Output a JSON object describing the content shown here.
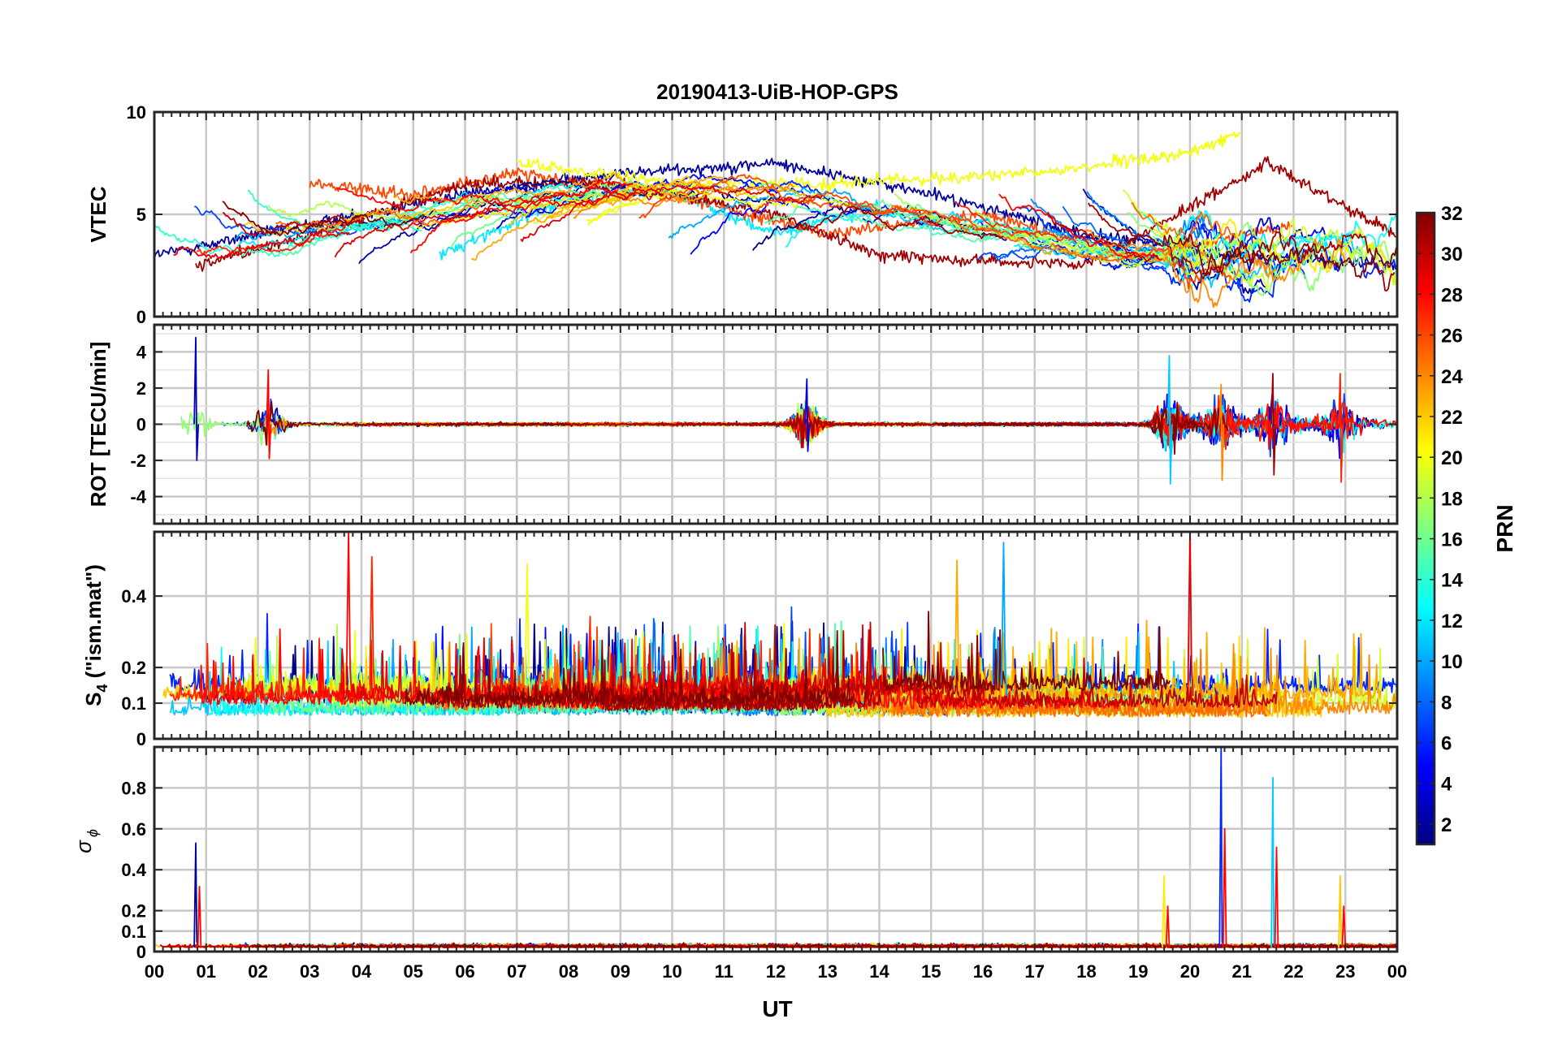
{
  "figure": {
    "title": "20190413-UiB-HOP-GPS",
    "xlabel": "UT",
    "x_ticks": [
      "00",
      "01",
      "02",
      "03",
      "04",
      "05",
      "06",
      "07",
      "08",
      "09",
      "10",
      "11",
      "12",
      "13",
      "14",
      "15",
      "16",
      "17",
      "18",
      "19",
      "20",
      "21",
      "22",
      "23",
      "00"
    ]
  },
  "colorbar": {
    "label": "PRN",
    "range": [
      1,
      32
    ],
    "colormap": "jet",
    "ticks": [
      "2",
      "4",
      "6",
      "8",
      "10",
      "12",
      "14",
      "16",
      "18",
      "20",
      "22",
      "24",
      "26",
      "28",
      "30",
      "32"
    ]
  },
  "chart_data": [
    {
      "type": "line",
      "panel": "VTEC",
      "ylabel": "VTEC",
      "ylim": [
        0,
        10
      ],
      "y_ticks": [
        "0",
        "5",
        "10"
      ],
      "xlim_hours": [
        0,
        24
      ],
      "grid": true,
      "series_note": "one trace per satellite PRN, colored by colorbar",
      "representative_levels": [
        {
          "prn": 2,
          "x": [
            0,
            3,
            6,
            9,
            12,
            15,
            18,
            21,
            24
          ],
          "y": [
            3.0,
            4.5,
            6.0,
            7.0,
            7.5,
            6.0,
            4.0,
            3.0,
            2.5
          ]
        },
        {
          "prn": 12,
          "x": [
            5.5,
            8,
            10,
            12,
            14
          ],
          "y": [
            3.0,
            5.8,
            6.2,
            4.0,
            5.5
          ]
        },
        {
          "prn": 20,
          "x": [
            7,
            10,
            13,
            17,
            20,
            21
          ],
          "y": [
            7.5,
            6.5,
            6.5,
            7.0,
            8.0,
            9.0
          ]
        },
        {
          "prn": 26,
          "x": [
            3,
            5,
            7,
            10,
            13,
            16,
            19,
            22
          ],
          "y": [
            6.5,
            6.0,
            7.0,
            6.0,
            4.0,
            5.0,
            3.0,
            4.5
          ]
        },
        {
          "prn": 31,
          "x": [
            0.8,
            3,
            6,
            9,
            12,
            14,
            18,
            21.5,
            24
          ],
          "y": [
            2.5,
            4.0,
            6.5,
            6.5,
            5.0,
            3.0,
            2.5,
            7.5,
            4.0
          ]
        }
      ]
    },
    {
      "type": "line",
      "panel": "ROT",
      "ylabel": "ROT [TECU/min]",
      "ylim": [
        -5.5,
        5.5
      ],
      "y_ticks": [
        "-4",
        "-2",
        "0",
        "2",
        "4"
      ],
      "grid": true,
      "notable_peaks": [
        {
          "hour": 0.8,
          "max": 4.8,
          "min": -2.0
        },
        {
          "hour": 2.2,
          "max": 3.0,
          "min": -1.9
        },
        {
          "hour": 12.6,
          "max": 2.5,
          "min": -1.5
        },
        {
          "hour": 19.6,
          "max": 3.8,
          "min": -3.3
        },
        {
          "hour": 20.6,
          "max": 2.2,
          "min": -3.1
        },
        {
          "hour": 21.6,
          "max": 2.8,
          "min": -2.8
        },
        {
          "hour": 22.9,
          "max": 2.8,
          "min": -3.2
        }
      ]
    },
    {
      "type": "line",
      "panel": "S4",
      "ylabel": "S4 (\"ism.mat\")",
      "ylabel_main": "S",
      "ylabel_sub": "4",
      "ylabel_rest": " (\"ism.mat\")",
      "ylim": [
        0,
        0.58
      ],
      "y_ticks": [
        "0",
        "0.1",
        "0.2",
        "0.4"
      ],
      "grid": true,
      "notable_peaks": [
        {
          "hour": 3.75,
          "value": 0.58
        },
        {
          "hour": 4.2,
          "value": 0.51
        },
        {
          "hour": 7.2,
          "value": 0.49
        },
        {
          "hour": 15.5,
          "value": 0.5
        },
        {
          "hour": 16.4,
          "value": 0.55
        },
        {
          "hour": 20.0,
          "value": 0.58
        }
      ]
    },
    {
      "type": "line",
      "panel": "sigma_phi",
      "ylabel": "σ ϕ",
      "ylabel_main": "σ",
      "ylabel_sub": "ϕ",
      "ylim": [
        0,
        1.0
      ],
      "y_ticks": [
        "0",
        "0.1",
        "0.2",
        "0.4",
        "0.6",
        "0.8"
      ],
      "grid": true,
      "notable_peaks": [
        {
          "hour": 0.8,
          "value": 0.53
        },
        {
          "hour": 19.5,
          "value": 0.37
        },
        {
          "hour": 20.6,
          "value": 1.0
        },
        {
          "hour": 21.6,
          "value": 0.85
        },
        {
          "hour": 22.9,
          "value": 0.37
        }
      ]
    }
  ]
}
